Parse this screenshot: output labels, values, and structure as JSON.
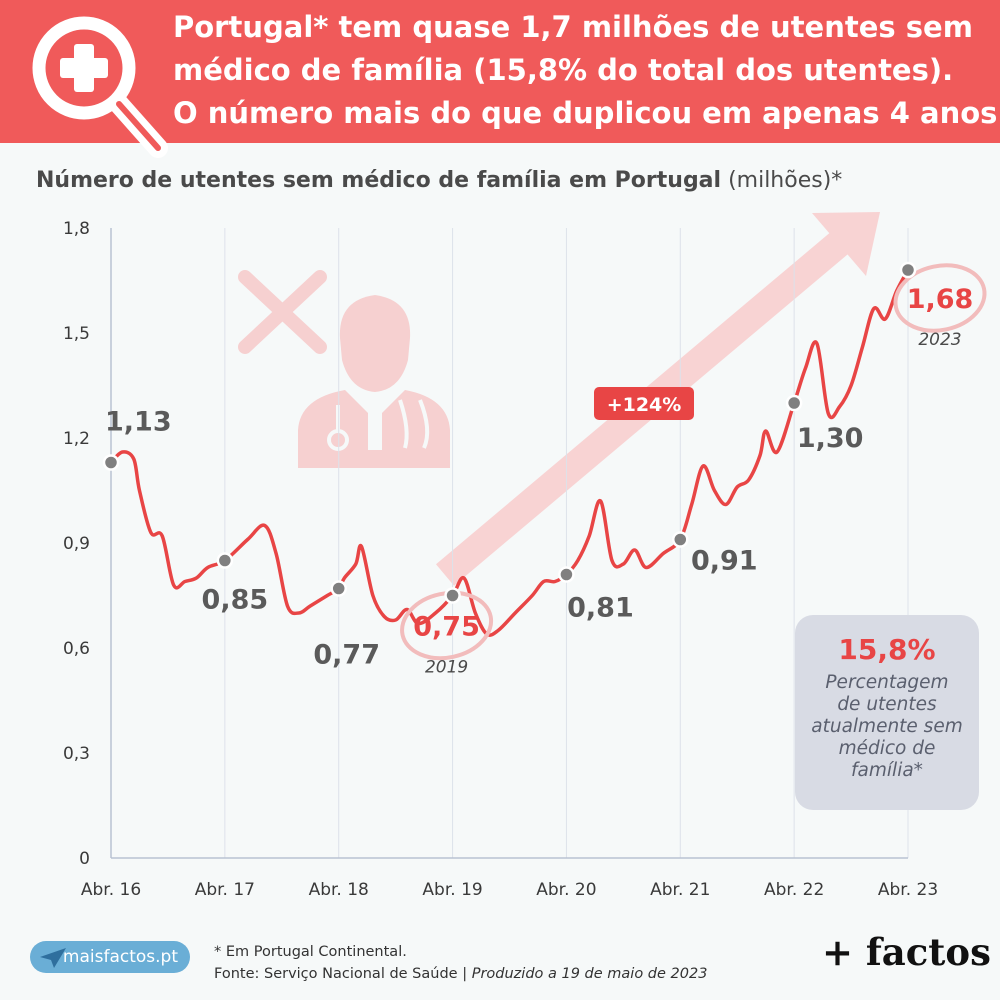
{
  "header": {
    "line1": "Portugal* tem quase 1,7 milhões de utentes sem",
    "line2": "médico de família (15,8% do total dos utentes).",
    "line3": "O número mais do que duplicou em apenas 4 anos."
  },
  "chart_title": {
    "bold": "Número de utentes sem médico de família em Portugal",
    "unit": " (milhões)*"
  },
  "chart_data": {
    "type": "line",
    "title": "Número de utentes sem médico de família em Portugal (milhões)*",
    "ylim": [
      0,
      1.8
    ],
    "y_ticks": [
      "0",
      "0,3",
      "0,6",
      "0,9",
      "1,2",
      "1,5",
      "1,8"
    ],
    "y_tick_values": [
      0,
      0.3,
      0.6,
      0.9,
      1.2,
      1.5,
      1.8
    ],
    "x_ticks": [
      "Abr. 16",
      "Abr. 17",
      "Abr. 18",
      "Abr. 19",
      "Abr. 20",
      "Abr. 21",
      "Abr. 22",
      "Abr. 23"
    ],
    "x_tick_values": [
      2016.25,
      2017.25,
      2018.25,
      2019.25,
      2020.25,
      2021.25,
      2022.25,
      2023.25
    ],
    "grid": "vertical",
    "series": [
      {
        "color": "#e84545",
        "points": [
          [
            2016.25,
            1.13
          ],
          [
            2016.35,
            1.16
          ],
          [
            2016.45,
            1.14
          ],
          [
            2016.5,
            1.05
          ],
          [
            2016.6,
            0.93
          ],
          [
            2016.7,
            0.92
          ],
          [
            2016.8,
            0.78
          ],
          [
            2016.9,
            0.79
          ],
          [
            2017.0,
            0.8
          ],
          [
            2017.1,
            0.83
          ],
          [
            2017.25,
            0.85
          ],
          [
            2017.45,
            0.91
          ],
          [
            2017.6,
            0.95
          ],
          [
            2017.7,
            0.87
          ],
          [
            2017.8,
            0.72
          ],
          [
            2017.9,
            0.7
          ],
          [
            2018.0,
            0.72
          ],
          [
            2018.15,
            0.75
          ],
          [
            2018.25,
            0.77
          ],
          [
            2018.3,
            0.8
          ],
          [
            2018.4,
            0.84
          ],
          [
            2018.45,
            0.89
          ],
          [
            2018.55,
            0.75
          ],
          [
            2018.65,
            0.69
          ],
          [
            2018.75,
            0.68
          ],
          [
            2018.85,
            0.71
          ],
          [
            2018.95,
            0.67
          ],
          [
            2019.1,
            0.7
          ],
          [
            2019.25,
            0.75
          ],
          [
            2019.35,
            0.8
          ],
          [
            2019.45,
            0.7
          ],
          [
            2019.55,
            0.64
          ],
          [
            2019.65,
            0.65
          ],
          [
            2019.8,
            0.7
          ],
          [
            2019.95,
            0.75
          ],
          [
            2020.05,
            0.79
          ],
          [
            2020.15,
            0.79
          ],
          [
            2020.25,
            0.81
          ],
          [
            2020.35,
            0.85
          ],
          [
            2020.45,
            0.92
          ],
          [
            2020.55,
            1.02
          ],
          [
            2020.65,
            0.85
          ],
          [
            2020.75,
            0.84
          ],
          [
            2020.85,
            0.88
          ],
          [
            2020.95,
            0.83
          ],
          [
            2021.1,
            0.87
          ],
          [
            2021.25,
            0.91
          ],
          [
            2021.35,
            1.01
          ],
          [
            2021.45,
            1.12
          ],
          [
            2021.55,
            1.05
          ],
          [
            2021.65,
            1.01
          ],
          [
            2021.75,
            1.06
          ],
          [
            2021.85,
            1.08
          ],
          [
            2021.95,
            1.15
          ],
          [
            2022.0,
            1.22
          ],
          [
            2022.1,
            1.16
          ],
          [
            2022.25,
            1.3
          ],
          [
            2022.35,
            1.4
          ],
          [
            2022.45,
            1.47
          ],
          [
            2022.55,
            1.27
          ],
          [
            2022.65,
            1.29
          ],
          [
            2022.75,
            1.35
          ],
          [
            2022.85,
            1.46
          ],
          [
            2022.95,
            1.57
          ],
          [
            2023.05,
            1.54
          ],
          [
            2023.15,
            1.62
          ],
          [
            2023.25,
            1.68
          ]
        ]
      }
    ],
    "markers": [
      {
        "x": 2016.25,
        "y": 1.13,
        "label": "1,13",
        "highlight": false
      },
      {
        "x": 2017.25,
        "y": 0.85,
        "label": "0,85",
        "highlight": false
      },
      {
        "x": 2018.25,
        "y": 0.77,
        "label": "0,77",
        "highlight": false
      },
      {
        "x": 2019.25,
        "y": 0.75,
        "label": "0,75",
        "highlight": true,
        "year": "2019"
      },
      {
        "x": 2020.25,
        "y": 0.81,
        "label": "0,81",
        "highlight": false
      },
      {
        "x": 2021.25,
        "y": 0.91,
        "label": "0,91",
        "highlight": false
      },
      {
        "x": 2022.25,
        "y": 1.3,
        "label": "1,30",
        "highlight": false
      },
      {
        "x": 2023.25,
        "y": 1.68,
        "label": "1,68",
        "highlight": true,
        "year": "2023"
      }
    ],
    "annotations": {
      "growth_label": "+124%"
    }
  },
  "info_box": {
    "percent": "15,8%",
    "description": "Percentagem de utentes atualmente sem médico de família*"
  },
  "footer": {
    "site": "maisfactos.pt",
    "note": "* Em Portugal Continental.",
    "source": "Fonte: Serviço Nacional de Saúde | ",
    "produced": "Produzido a 19 de maio de 2023",
    "brand": "+ factos"
  },
  "colors": {
    "accent": "#e84545",
    "banner": "#f05a5a",
    "label_gray": "#5a5a5a",
    "box": "#d8dbe4"
  },
  "icons": [
    "health-search-icon",
    "no-doctor-icon",
    "growth-arrow-icon",
    "paper-plane-icon"
  ]
}
